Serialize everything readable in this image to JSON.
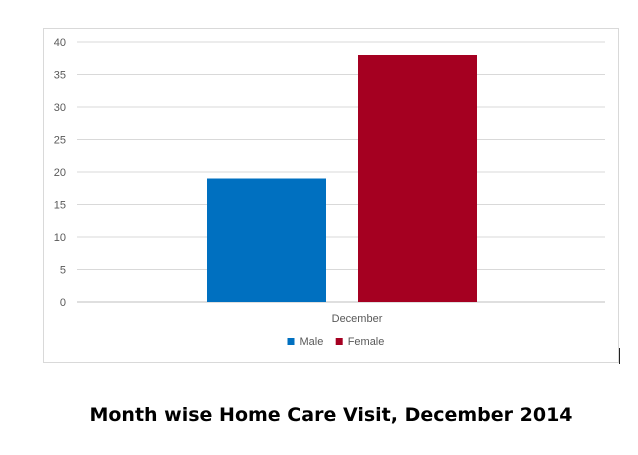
{
  "chart_data": {
    "type": "bar",
    "title": "Month wise Home Care Visit, December 2014",
    "xlabel": "",
    "ylabel": "",
    "categories": [
      "December"
    ],
    "series": [
      {
        "name": "Male",
        "values": [
          19
        ],
        "color": "#0070c0"
      },
      {
        "name": "Female",
        "values": [
          38
        ],
        "color": "#a50021"
      }
    ],
    "ylim": [
      0,
      40
    ],
    "yticks": [
      0,
      5,
      10,
      15,
      20,
      25,
      30,
      35,
      40
    ],
    "grid": true,
    "legend_position": "bottom"
  }
}
